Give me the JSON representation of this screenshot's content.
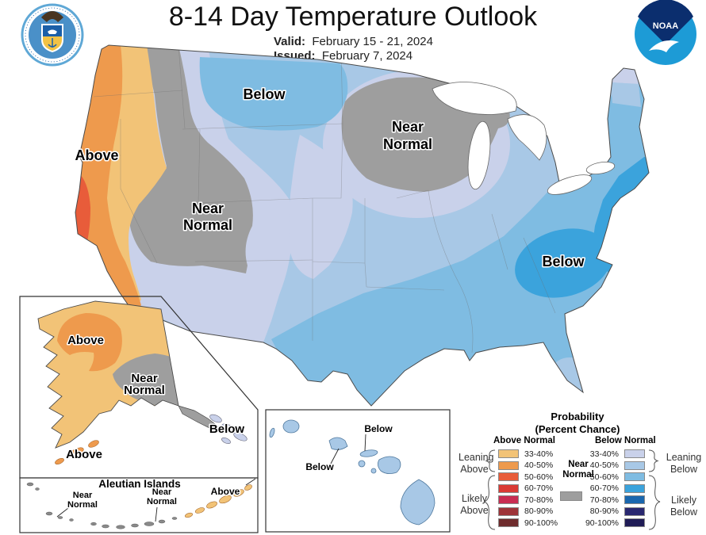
{
  "header": {
    "title": "8-14 Day Temperature Outlook",
    "valid_label": "Valid:",
    "valid_value": "February 15 - 21, 2024",
    "issued_label": "Issued:",
    "issued_value": "February 7, 2024"
  },
  "logos": {
    "noaa_text": "NOAA"
  },
  "colors": {
    "above": [
      "#F2C377",
      "#EE9A4D",
      "#E85C3A",
      "#DA3B35",
      "#C92D52",
      "#9E3439",
      "#6E2C2D"
    ],
    "below": [
      "#C9D1EA",
      "#A8C8E6",
      "#7FBCE2",
      "#3BA3DC",
      "#1A67AE",
      "#2A2870",
      "#201C56"
    ],
    "near_normal": "#9E9E9E",
    "noaa_light_blue": "#1D9BD6",
    "noaa_dark_blue": "#0B2E6E",
    "doc_seal_blue": "#4A90C8"
  },
  "map": {
    "conus": {
      "above_west": "Above",
      "below_north": "Below",
      "near_west_line1": "Near",
      "near_west_line2": "Normal",
      "near_midwest_line1": "Near",
      "near_midwest_line2": "Normal",
      "below_southeast": "Below"
    },
    "alaska": {
      "above_nw": "Above",
      "near_line1": "Near",
      "near_line2": "Normal",
      "below_panhandle": "Below",
      "above_peninsula": "Above"
    },
    "aleutian": {
      "title": "Aleutian Islands",
      "near1_line1": "Near",
      "near1_line2": "Normal",
      "near2_line1": "Near",
      "near2_line2": "Normal",
      "above": "Above"
    },
    "hawaii": {
      "below_top": "Below",
      "below_bottom": "Below"
    }
  },
  "legend": {
    "title_line1": "Probability",
    "title_line2": "(Percent Chance)",
    "above_header": "Above Normal",
    "below_header": "Below Normal",
    "ranges": [
      "33-40%",
      "40-50%",
      "50-60%",
      "60-70%",
      "70-80%",
      "80-90%",
      "90-100%"
    ],
    "near_normal_line1": "Near",
    "near_normal_line2": "Normal",
    "leaning_above": "Leaning Above",
    "likely_above": "Likely Above",
    "leaning_below": "Leaning Below",
    "likely_below": "Likely Below"
  }
}
